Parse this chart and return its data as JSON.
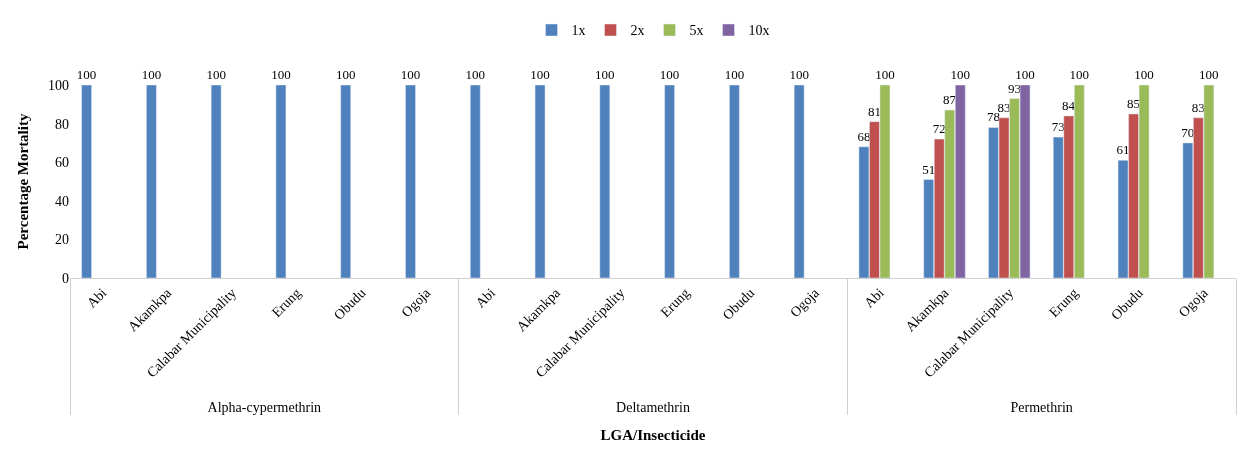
{
  "chart_data": {
    "type": "bar",
    "xlabel": "LGA/Insecticide",
    "ylabel": "Percentage Mortality",
    "annotations": [
      "Alpha-cypermethrin",
      "Deltamethrin",
      "Permethrin"
    ],
    "categories": [
      "Abi",
      "Akamkpa",
      "Calabar Municipality",
      "Erung",
      "Obudu",
      "Ogoja",
      "Abi",
      "Akamkpa",
      "Calabar Municipality",
      "Erung",
      "Obudu",
      "Ogoja",
      "Abi",
      "Akamkpa",
      "Calabar Municipality",
      "Erung",
      "Obudu",
      "Ogoja"
    ],
    "series": [
      {
        "name": "1x",
        "color": "#4f81bd",
        "values": [
          100,
          100,
          100,
          100,
          100,
          100,
          100,
          100,
          100,
          100,
          100,
          100,
          68,
          51,
          78,
          73,
          61,
          70
        ]
      },
      {
        "name": "2x",
        "color": "#c0504d",
        "values": [
          null,
          null,
          null,
          null,
          null,
          null,
          null,
          null,
          null,
          null,
          null,
          null,
          81,
          72,
          83,
          84,
          85,
          83
        ]
      },
      {
        "name": "5x",
        "color": "#9bbb59",
        "values": [
          null,
          null,
          null,
          null,
          null,
          null,
          null,
          null,
          null,
          null,
          null,
          null,
          100,
          87,
          93,
          100,
          100,
          100
        ]
      },
      {
        "name": "10x",
        "color": "#8064a2",
        "values": [
          null,
          null,
          null,
          null,
          null,
          null,
          null,
          null,
          null,
          null,
          null,
          null,
          null,
          100,
          100,
          null,
          null,
          null
        ]
      }
    ],
    "ylim": [
      0,
      100
    ],
    "yticks": [
      0,
      20,
      40,
      60,
      80,
      100
    ],
    "legend": "top",
    "data_labels": true
  }
}
